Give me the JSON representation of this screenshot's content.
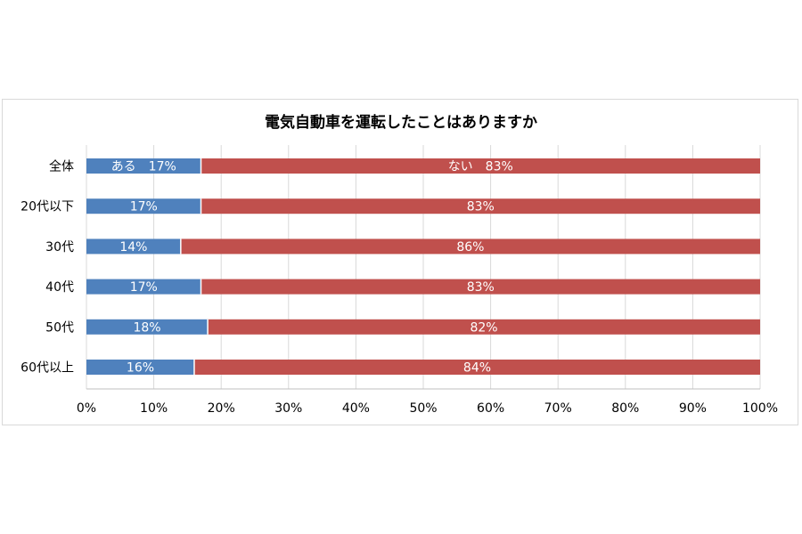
{
  "chart_data": {
    "type": "bar",
    "orientation": "horizontal",
    "stacked": true,
    "percent_stacked": true,
    "title": "電気自動車を運転したことはありますか",
    "categories": [
      "全体",
      "20代以下",
      "30代",
      "40代",
      "50代",
      "60代以上"
    ],
    "series": [
      {
        "name": "ある",
        "color": "#4f81bd",
        "values": [
          17,
          17,
          14,
          17,
          18,
          16
        ],
        "labels": [
          "ある　17%",
          "17%",
          "14%",
          "17%",
          "18%",
          "16%"
        ]
      },
      {
        "color": "#c0504d",
        "values": [
          83,
          83,
          86,
          83,
          82,
          84
        ],
        "labels": [
          "ない　83%",
          "83%",
          "86%",
          "83%",
          "82%",
          "84%"
        ]
      }
    ],
    "xlim": [
      0,
      100
    ],
    "x_ticks": [
      "0%",
      "10%",
      "20%",
      "30%",
      "40%",
      "50%",
      "60%",
      "70%",
      "80%",
      "90%",
      "100%"
    ],
    "grid": "vertical",
    "legend": "none"
  }
}
